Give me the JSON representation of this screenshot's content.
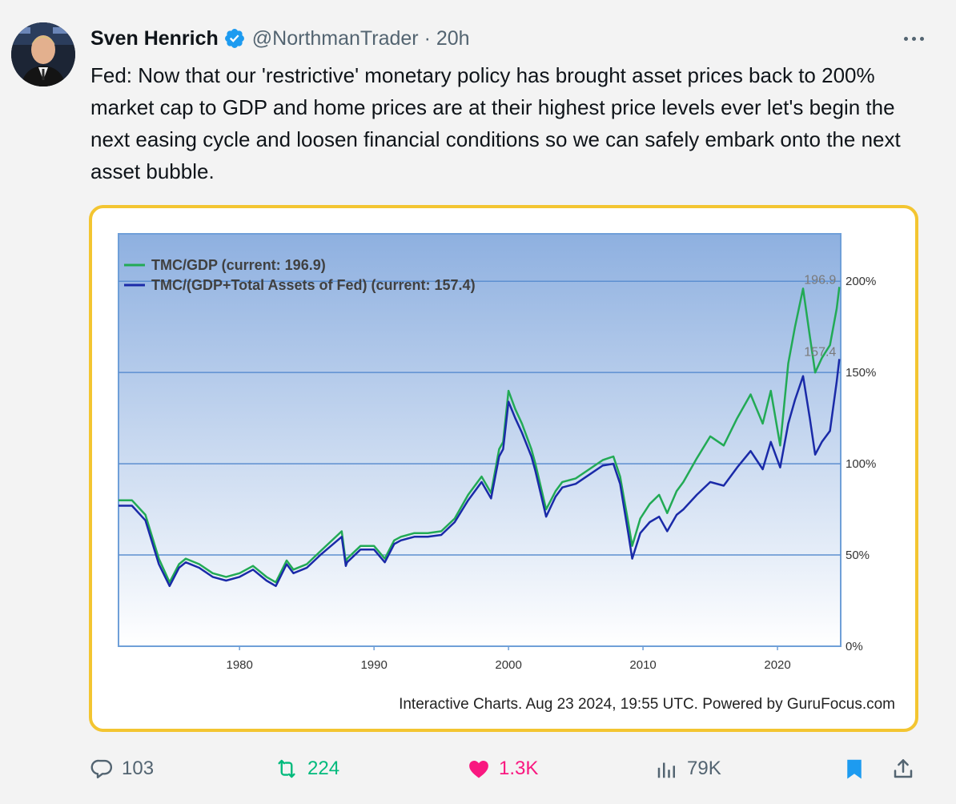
{
  "tweet": {
    "author_name": "Sven Henrich",
    "handle": "@NorthmanTrader",
    "time": "20h",
    "text": "Fed: Now that our 'restrictive' monetary policy has brought asset prices back to 200% market cap to GDP and home prices are at their highest price levels ever let's begin the next easing cycle and loosen financial conditions so we can safely embark onto the next asset bubble."
  },
  "media": {
    "legend": [
      {
        "label": "TMC/GDP (current: 196.9)",
        "color": "#22aa55"
      },
      {
        "label": "TMC/(GDP+Total Assets of Fed) (current: 157.4)",
        "color": "#1a2aa8"
      }
    ],
    "end_labels": [
      "196.9",
      "157.4"
    ],
    "footer": "Interactive Charts. Aug 23 2024, 19:55 UTC. Powered by GuruFocus.com"
  },
  "chart_data": {
    "type": "line",
    "xlim": [
      1971,
      2024.7
    ],
    "ylim": [
      0,
      200
    ],
    "x_ticks": [
      "1980",
      "1990",
      "2000",
      "2010",
      "2020"
    ],
    "y_ticks": [
      "0%",
      "50%",
      "100%",
      "150%",
      "200%"
    ],
    "grid": true,
    "legend_position": "top-left",
    "series": [
      {
        "name": "TMC/GDP (current: 196.9)",
        "color": "#22aa55",
        "points": [
          [
            1971,
            80
          ],
          [
            1972,
            80
          ],
          [
            1973,
            72
          ],
          [
            1974,
            48
          ],
          [
            1974.8,
            35
          ],
          [
            1975.5,
            45
          ],
          [
            1976,
            48
          ],
          [
            1977,
            45
          ],
          [
            1978,
            40
          ],
          [
            1979,
            38
          ],
          [
            1980,
            40
          ],
          [
            1981,
            44
          ],
          [
            1982,
            38
          ],
          [
            1982.7,
            35
          ],
          [
            1983.5,
            47
          ],
          [
            1984,
            42
          ],
          [
            1985,
            45
          ],
          [
            1986,
            52
          ],
          [
            1987.6,
            63
          ],
          [
            1987.9,
            46
          ],
          [
            1988,
            48
          ],
          [
            1989,
            55
          ],
          [
            1990,
            55
          ],
          [
            1990.8,
            48
          ],
          [
            1991.5,
            58
          ],
          [
            1992,
            60
          ],
          [
            1993,
            62
          ],
          [
            1994,
            62
          ],
          [
            1995,
            63
          ],
          [
            1996,
            70
          ],
          [
            1997,
            83
          ],
          [
            1998,
            93
          ],
          [
            1998.7,
            84
          ],
          [
            1999.3,
            108
          ],
          [
            1999.6,
            112
          ],
          [
            2000,
            140
          ],
          [
            2000.5,
            130
          ],
          [
            2001,
            122
          ],
          [
            2001.7,
            108
          ],
          [
            2002,
            100
          ],
          [
            2002.8,
            75
          ],
          [
            2003.5,
            85
          ],
          [
            2004,
            90
          ],
          [
            2005,
            92
          ],
          [
            2006,
            97
          ],
          [
            2007,
            102
          ],
          [
            2007.8,
            104
          ],
          [
            2008.3,
            93
          ],
          [
            2008.9,
            68
          ],
          [
            2009.2,
            55
          ],
          [
            2009.8,
            70
          ],
          [
            2010.5,
            78
          ],
          [
            2011.2,
            83
          ],
          [
            2011.8,
            73
          ],
          [
            2012.5,
            85
          ],
          [
            2013,
            90
          ],
          [
            2014,
            103
          ],
          [
            2015,
            115
          ],
          [
            2016,
            110
          ],
          [
            2017,
            125
          ],
          [
            2018,
            138
          ],
          [
            2018.9,
            122
          ],
          [
            2019.5,
            140
          ],
          [
            2020.2,
            110
          ],
          [
            2020.8,
            155
          ],
          [
            2021.3,
            175
          ],
          [
            2021.9,
            196
          ],
          [
            2022.4,
            170
          ],
          [
            2022.8,
            150
          ],
          [
            2023.3,
            158
          ],
          [
            2023.9,
            165
          ],
          [
            2024.4,
            185
          ],
          [
            2024.6,
            196.9
          ]
        ]
      },
      {
        "name": "TMC/(GDP+Total Assets of Fed) (current: 157.4)",
        "color": "#1a2aa8",
        "points": [
          [
            1971,
            77
          ],
          [
            1972,
            77
          ],
          [
            1973,
            69
          ],
          [
            1974,
            45
          ],
          [
            1974.8,
            33
          ],
          [
            1975.5,
            43
          ],
          [
            1976,
            46
          ],
          [
            1977,
            43
          ],
          [
            1978,
            38
          ],
          [
            1979,
            36
          ],
          [
            1980,
            38
          ],
          [
            1981,
            42
          ],
          [
            1982,
            36
          ],
          [
            1982.7,
            33
          ],
          [
            1983.5,
            45
          ],
          [
            1984,
            40
          ],
          [
            1985,
            43
          ],
          [
            1986,
            50
          ],
          [
            1987.6,
            60
          ],
          [
            1987.9,
            44
          ],
          [
            1988,
            46
          ],
          [
            1989,
            53
          ],
          [
            1990,
            53
          ],
          [
            1990.8,
            46
          ],
          [
            1991.5,
            56
          ],
          [
            1992,
            58
          ],
          [
            1993,
            60
          ],
          [
            1994,
            60
          ],
          [
            1995,
            61
          ],
          [
            1996,
            68
          ],
          [
            1997,
            80
          ],
          [
            1998,
            90
          ],
          [
            1998.7,
            81
          ],
          [
            1999.3,
            104
          ],
          [
            1999.6,
            108
          ],
          [
            2000,
            134
          ],
          [
            2000.5,
            125
          ],
          [
            2001,
            117
          ],
          [
            2001.7,
            104
          ],
          [
            2002,
            96
          ],
          [
            2002.8,
            71
          ],
          [
            2003.5,
            82
          ],
          [
            2004,
            87
          ],
          [
            2005,
            89
          ],
          [
            2006,
            94
          ],
          [
            2007,
            99
          ],
          [
            2007.8,
            100
          ],
          [
            2008.3,
            89
          ],
          [
            2008.9,
            62
          ],
          [
            2009.2,
            48
          ],
          [
            2009.8,
            62
          ],
          [
            2010.5,
            68
          ],
          [
            2011.2,
            71
          ],
          [
            2011.8,
            63
          ],
          [
            2012.5,
            72
          ],
          [
            2013,
            75
          ],
          [
            2014,
            83
          ],
          [
            2015,
            90
          ],
          [
            2016,
            88
          ],
          [
            2017,
            98
          ],
          [
            2018,
            107
          ],
          [
            2018.9,
            97
          ],
          [
            2019.5,
            112
          ],
          [
            2020.2,
            98
          ],
          [
            2020.8,
            122
          ],
          [
            2021.3,
            135
          ],
          [
            2021.9,
            148
          ],
          [
            2022.4,
            125
          ],
          [
            2022.8,
            105
          ],
          [
            2023.3,
            112
          ],
          [
            2023.9,
            118
          ],
          [
            2024.4,
            145
          ],
          [
            2024.6,
            157.4
          ]
        ]
      }
    ]
  },
  "actions": {
    "replies": "103",
    "reposts": "224",
    "likes": "1.3K",
    "views": "79K"
  },
  "colors": {
    "repost": "#00ba7c",
    "like": "#f91880",
    "bookmark": "#1d9bf0",
    "muted": "#536471",
    "media_border": "#f3c531"
  },
  "icons": [
    "reply-icon",
    "repost-icon",
    "heart-icon",
    "views-icon",
    "bookmark-icon",
    "share-icon",
    "verified-badge-icon",
    "more-icon"
  ]
}
